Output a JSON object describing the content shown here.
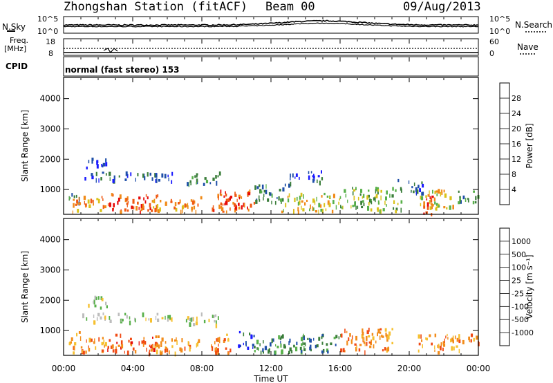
{
  "header": {
    "station": "Zhongshan Station (fitACF)",
    "beam": "Beam 00",
    "date": "09/Aug/2013"
  },
  "strip_labels": {
    "nsky": "N.Sky",
    "nsky_top": "10^5",
    "nsky_bottom": "10^0",
    "nsearch": "N.Search",
    "nsearch_top": "10^5",
    "nsearch_bottom": "10^0",
    "freq_line1": "Freq.",
    "freq_line2": "[MHz]",
    "freq_top": "18",
    "freq_bottom": "8",
    "nave": "Nave",
    "nave_top": "60",
    "nave_bottom": "0",
    "cpid": "CPID",
    "mode": "normal (fast stereo) 153"
  },
  "colors": {
    "power_scale": [
      "#1a1aff",
      "#1f4fa8",
      "#3a7d3a",
      "#58b04a",
      "#d9c21a",
      "#f08a18",
      "#ef5a14",
      "#e60a0a"
    ],
    "velocity_scale": [
      "#e60a0a",
      "#f04a14",
      "#f28c1a",
      "#f6c030",
      "#bdbdbd",
      "#58b04a",
      "#3a7d3a",
      "#1f4fa8",
      "#1a1aff"
    ]
  },
  "chart_data": [
    {
      "type": "heatmap",
      "name": "power",
      "ylabel": "Slant Range [km]",
      "yticks": [
        "1000",
        "2000",
        "3000",
        "4000"
      ],
      "ylim": [
        180,
        4700
      ],
      "colorbar_label": "Power [dB]",
      "colorbar_ticks": [
        "4",
        "8",
        "12",
        "16",
        "20",
        "24",
        "28"
      ],
      "colorbar_range": [
        0,
        32
      ],
      "blobs": [
        {
          "t0": 0.3,
          "t1": 1.0,
          "r0": 600,
          "r1": 1000,
          "level": 2
        },
        {
          "t0": 1.0,
          "t1": 3.0,
          "r0": 1300,
          "r1": 1600,
          "level": 1
        },
        {
          "t0": 1.3,
          "t1": 2.5,
          "r0": 1750,
          "r1": 2150,
          "level": 1
        },
        {
          "t0": 0.5,
          "t1": 2.5,
          "r0": 300,
          "r1": 800,
          "level": 5
        },
        {
          "t0": 2.5,
          "t1": 5.5,
          "r0": 300,
          "r1": 900,
          "level": 6
        },
        {
          "t0": 3.0,
          "t1": 6.3,
          "r0": 1300,
          "r1": 1600,
          "level": 1
        },
        {
          "t0": 5.0,
          "t1": 8.0,
          "r0": 300,
          "r1": 800,
          "level": 5
        },
        {
          "t0": 7.0,
          "t1": 9.0,
          "r0": 1200,
          "r1": 1600,
          "level": 2
        },
        {
          "t0": 8.5,
          "t1": 11.0,
          "r0": 300,
          "r1": 1000,
          "level": 6
        },
        {
          "t0": 9.2,
          "t1": 10.4,
          "r0": 400,
          "r1": 800,
          "level": 7
        },
        {
          "t0": 11.0,
          "t1": 13.0,
          "r0": 600,
          "r1": 1200,
          "level": 2
        },
        {
          "t0": 13.0,
          "t1": 15.0,
          "r0": 1250,
          "r1": 1650,
          "level": 1
        },
        {
          "t0": 12.5,
          "t1": 16.0,
          "r0": 300,
          "r1": 900,
          "level": 4
        },
        {
          "t0": 16.0,
          "t1": 19.5,
          "r0": 300,
          "r1": 1100,
          "level": 3
        },
        {
          "t0": 19.3,
          "t1": 20.8,
          "r0": 900,
          "r1": 1400,
          "level": 1
        },
        {
          "t0": 20.8,
          "t1": 21.6,
          "r0": 180,
          "r1": 800,
          "level": 7
        },
        {
          "t0": 20.5,
          "t1": 22.5,
          "r0": 400,
          "r1": 1100,
          "level": 4
        },
        {
          "t0": 22.5,
          "t1": 24.0,
          "r0": 600,
          "r1": 1000,
          "level": 2
        }
      ]
    },
    {
      "type": "heatmap",
      "name": "velocity",
      "ylabel": "Slant Range [km]",
      "yticks": [
        "1000",
        "2000",
        "3000",
        "4000"
      ],
      "ylim": [
        180,
        4700
      ],
      "xlabel": "Time UT",
      "xticks": [
        "00:00",
        "04:00",
        "08:00",
        "12:00",
        "16:00",
        "20:00",
        "00:00"
      ],
      "colorbar_label": "Velocity [m s⁻¹]",
      "colorbar_ticks": [
        "-1000",
        "-500",
        "-100",
        "-25",
        "25",
        "100",
        "500",
        "1000"
      ],
      "blobs": [
        {
          "t0": 0.3,
          "t1": 1.0,
          "r0": 600,
          "r1": 1000,
          "level": 3
        },
        {
          "t0": 1.0,
          "t1": 3.0,
          "r0": 1300,
          "r1": 1600,
          "level": 4
        },
        {
          "t0": 1.3,
          "t1": 2.5,
          "r0": 1750,
          "r1": 2150,
          "level": 4
        },
        {
          "t0": 0.5,
          "t1": 2.5,
          "r0": 300,
          "r1": 800,
          "level": 2
        },
        {
          "t0": 2.5,
          "t1": 5.5,
          "r0": 300,
          "r1": 900,
          "level": 1
        },
        {
          "t0": 3.0,
          "t1": 6.3,
          "r0": 1300,
          "r1": 1600,
          "level": 4
        },
        {
          "t0": 5.0,
          "t1": 8.0,
          "r0": 300,
          "r1": 800,
          "level": 2
        },
        {
          "t0": 7.0,
          "t1": 9.0,
          "r0": 1200,
          "r1": 1600,
          "level": 4
        },
        {
          "t0": 8.5,
          "t1": 10.0,
          "r0": 300,
          "r1": 900,
          "level": 2
        },
        {
          "t0": 10.0,
          "t1": 11.0,
          "r0": 400,
          "r1": 1000,
          "level": 7
        },
        {
          "t0": 11.0,
          "t1": 13.0,
          "r0": 300,
          "r1": 900,
          "level": 6
        },
        {
          "t0": 13.0,
          "t1": 16.0,
          "r0": 300,
          "r1": 900,
          "level": 6
        },
        {
          "t0": 16.0,
          "t1": 19.0,
          "r0": 300,
          "r1": 1100,
          "level": 2
        },
        {
          "t0": 20.5,
          "t1": 23.0,
          "r0": 300,
          "r1": 900,
          "level": 2
        },
        {
          "t0": 23.0,
          "t1": 24.0,
          "r0": 600,
          "r1": 1000,
          "level": 2
        }
      ]
    }
  ]
}
